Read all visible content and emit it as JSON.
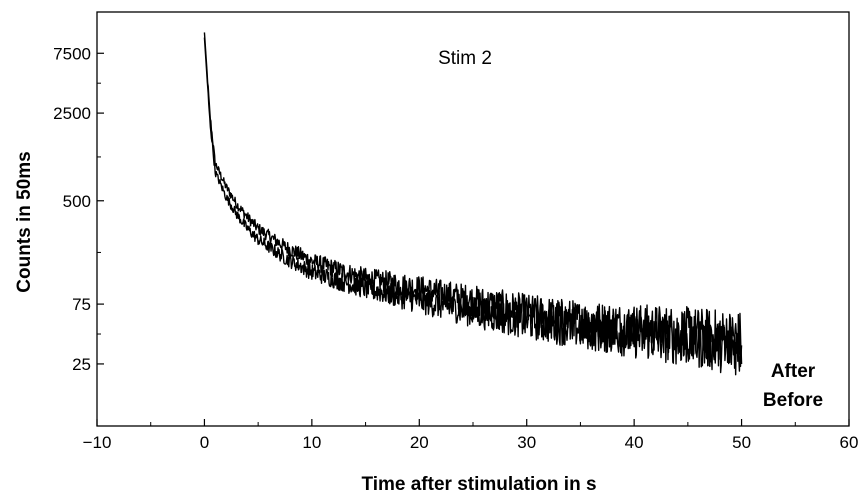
{
  "chart_data": {
    "type": "line",
    "title": "",
    "xlabel": "Time after stimulation in s",
    "ylabel": "Counts in 50ms",
    "xlim": [
      -10,
      60
    ],
    "x_ticks": [
      -10,
      0,
      10,
      20,
      30,
      40,
      50,
      60
    ],
    "x_tick_labels": [
      "−10",
      "0",
      "10",
      "20",
      "30",
      "40",
      "50",
      "60"
    ],
    "y_scale": "log",
    "ylim": [
      8,
      16000
    ],
    "y_ticks": [
      25,
      75,
      500,
      2500,
      7500
    ],
    "y_tick_labels": [
      "25",
      "75",
      "500",
      "2500",
      "7500"
    ],
    "annotation": "Stim 2",
    "grid": false,
    "series_labels": [
      "After",
      "Before"
    ],
    "series": [
      {
        "name": "After",
        "color": "#000000",
        "x": [
          0,
          0.5,
          1,
          2,
          3,
          4,
          5,
          7.5,
          10,
          12.5,
          15,
          20,
          25,
          30,
          35,
          40,
          45,
          50
        ],
        "values": [
          11000,
          2500,
          1000,
          650,
          470,
          370,
          300,
          215,
          165,
          140,
          120,
          100,
          80,
          65,
          55,
          50,
          45,
          40
        ]
      },
      {
        "name": "Before",
        "color": "#000000",
        "x": [
          0,
          0.5,
          1,
          2,
          3,
          4,
          5,
          7.5,
          10,
          12.5,
          15,
          20,
          25,
          30,
          35,
          40,
          45,
          50
        ],
        "values": [
          10000,
          2200,
          850,
          540,
          390,
          300,
          245,
          175,
          135,
          115,
          100,
          80,
          65,
          55,
          48,
          42,
          38,
          33
        ]
      }
    ]
  }
}
